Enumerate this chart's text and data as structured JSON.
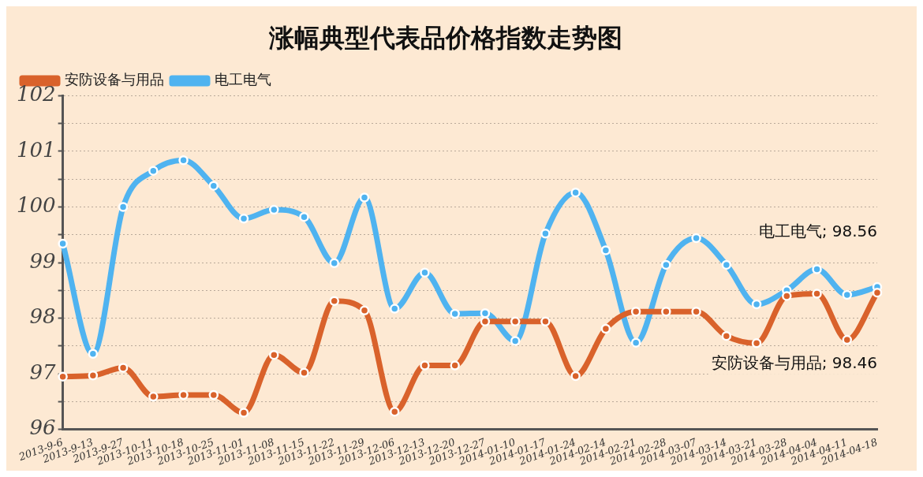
{
  "chart_data": {
    "type": "line",
    "title": "涨幅典型代表品价格指数走势图",
    "categories": [
      "2013-9-6",
      "2013-9-13",
      "2013-9-27",
      "2013-10-11",
      "2013-10-18",
      "2013-10-25",
      "2013-11-01",
      "2013-11-08",
      "2013-11-15",
      "2013-11-22",
      "2013-11-29",
      "2013-12-06",
      "2013-12-13",
      "2013-12-20",
      "2013-12-27",
      "2014-01-10",
      "2014-01-17",
      "2014-01-24",
      "2014-02-14",
      "2014-02-21",
      "2014-02-28",
      "2014-03-07",
      "2014-03-14",
      "2014-03-21",
      "2014-03-28",
      "2014-04-04",
      "2014-04-11",
      "2014-04-18"
    ],
    "series": [
      {
        "name": "安防设备与用品",
        "color": "#d9622b",
        "values": [
          96.95,
          96.97,
          97.11,
          96.59,
          96.62,
          96.62,
          96.3,
          97.34,
          97.02,
          98.31,
          98.14,
          96.32,
          97.15,
          97.15,
          97.94,
          97.94,
          97.94,
          96.96,
          97.81,
          98.12,
          98.12,
          98.12,
          97.68,
          97.55,
          98.4,
          98.44,
          97.61,
          98.46
        ]
      },
      {
        "name": "电工电气",
        "color": "#4fb3f0",
        "values": [
          99.34,
          97.36,
          100.0,
          100.65,
          100.84,
          100.38,
          99.79,
          99.95,
          99.82,
          98.99,
          100.17,
          98.17,
          98.82,
          98.08,
          98.09,
          97.59,
          99.52,
          100.26,
          99.22,
          97.56,
          98.96,
          99.44,
          98.96,
          98.25,
          98.5,
          98.88,
          98.42,
          98.56
        ]
      }
    ],
    "ylim": [
      96,
      102
    ],
    "yticks": [
      96,
      {
        "value": 96.5,
        "label": null
      },
      97,
      {
        "value": 97.5,
        "label": null
      },
      98,
      {
        "value": 98.5,
        "label": null
      },
      99,
      {
        "value": 99.5,
        "label": null
      },
      100,
      {
        "value": 100.5,
        "label": null
      },
      101,
      {
        "value": 101.5,
        "label": null
      },
      102
    ],
    "grid": "y",
    "legend": "top left",
    "marker": "circle",
    "line_style": "solid",
    "annotations": [
      "电工电气; 98.56",
      "安防设备与用品; 98.46"
    ]
  }
}
